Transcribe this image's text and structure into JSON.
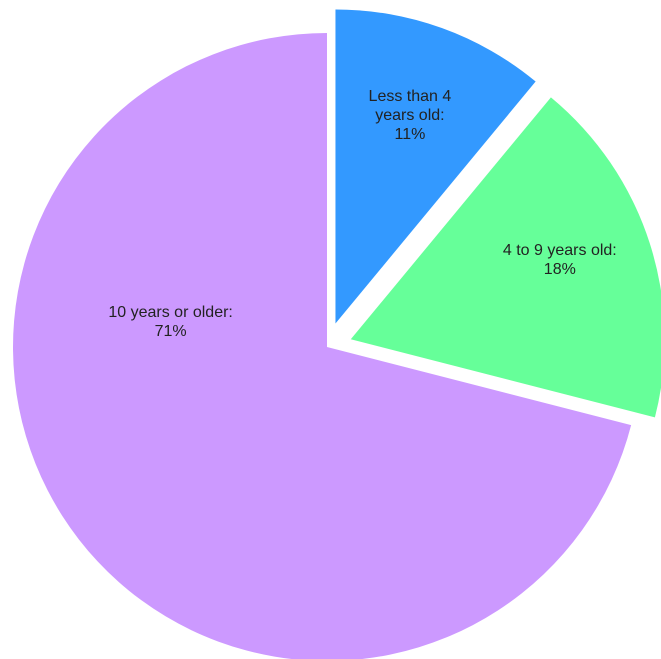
{
  "chart_data": {
    "type": "pie",
    "categories": [
      "Less than 4 years old:",
      "4 to 9 years old:",
      "10 years or older:"
    ],
    "values": [
      11,
      18,
      71
    ],
    "value_labels": [
      "11%",
      "18%",
      "71%"
    ],
    "colors": [
      "#3399ff",
      "#66ff99",
      "#cc99ff"
    ]
  }
}
